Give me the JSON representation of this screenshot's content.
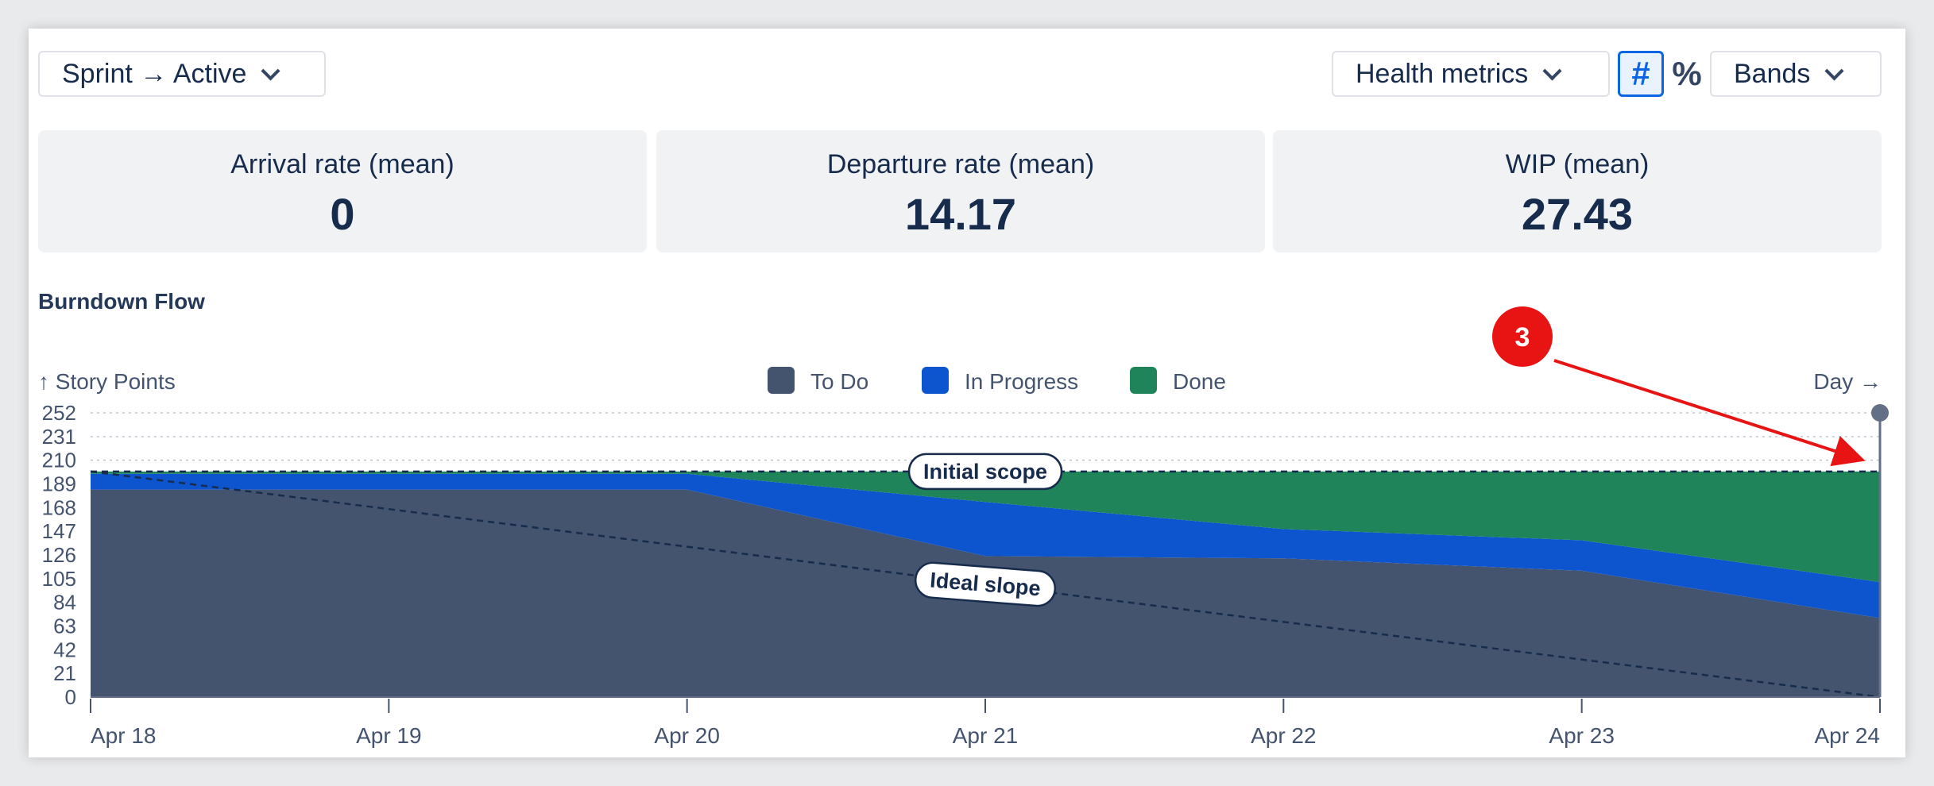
{
  "toolbar": {
    "sprint_filter": "Sprint → Active",
    "health_metrics": "Health metrics",
    "count_toggle": "#",
    "percent_toggle": "%",
    "bands": "Bands"
  },
  "metrics": [
    {
      "label": "Arrival rate (mean)",
      "value": "0"
    },
    {
      "label": "Departure rate (mean)",
      "value": "14.17"
    },
    {
      "label": "WIP (mean)",
      "value": "27.43"
    }
  ],
  "chart_title": "Burndown Flow",
  "annotation_marker": "3",
  "colors": {
    "todo": "#44546f",
    "in_progress": "#0c55cf",
    "done": "#1f845a",
    "annotation": "#e81414"
  },
  "chart_data": {
    "type": "area",
    "title": "Burndown Flow",
    "ylabel": "↑ Story Points",
    "xlabel": "Day →",
    "ylim": [
      0,
      252
    ],
    "yticks": [
      0,
      21,
      42,
      63,
      84,
      105,
      126,
      147,
      168,
      189,
      210,
      231,
      252
    ],
    "x": [
      "Apr 18",
      "Apr 19",
      "Apr 20",
      "Apr 21",
      "Apr 22",
      "Apr 23",
      "Apr 24"
    ],
    "stacked": true,
    "legend_position": "top-center",
    "series": [
      {
        "name": "To Do",
        "values": [
          184,
          184,
          184,
          125,
          123,
          112,
          70
        ]
      },
      {
        "name": "In Progress",
        "values": [
          14,
          14,
          14,
          48,
          26,
          27,
          32
        ]
      },
      {
        "name": "Done",
        "values": [
          2,
          2,
          2,
          27,
          51,
          61,
          98
        ]
      }
    ],
    "annotations": [
      {
        "label": "Initial scope",
        "value": 200
      },
      {
        "label": "Ideal slope",
        "from": 200,
        "to": 0
      }
    ]
  }
}
